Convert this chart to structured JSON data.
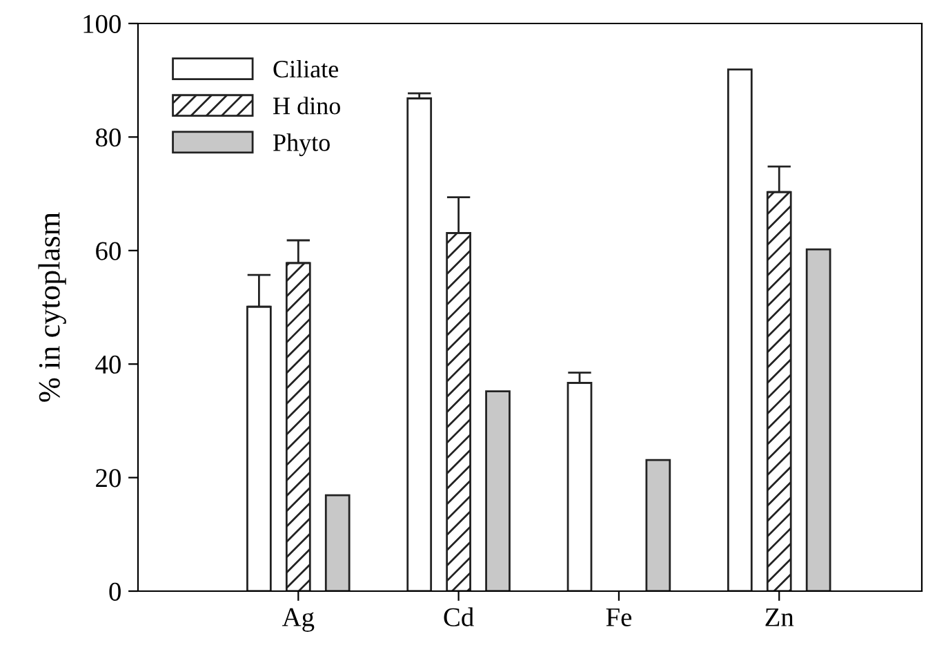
{
  "chart_data": {
    "type": "bar",
    "ylabel": "% in cytoplasm",
    "categories": [
      "Ag",
      "Cd",
      "Fe",
      "Zn"
    ],
    "series": [
      {
        "name": "Ciliate",
        "color": "#ffffff",
        "values": [
          50.1,
          86.8,
          36.7,
          91.9
        ],
        "errors": [
          [
            50.1,
            55.7
          ],
          [
            86.8,
            87.7
          ],
          [
            36.7,
            38.5
          ],
          null
        ]
      },
      {
        "name": "H dino",
        "color": "#222222",
        "values": [
          57.8,
          63.1,
          null,
          70.3
        ],
        "errors": [
          [
            57.8,
            61.8
          ],
          [
            63.1,
            69.4
          ],
          null,
          [
            70.3,
            74.8
          ]
        ]
      },
      {
        "name": "Phyto",
        "color": "#c8c8c8",
        "values": [
          16.9,
          35.2,
          23.1,
          60.2
        ]
      }
    ],
    "ylim": [
      0,
      100
    ],
    "yticks": [
      0,
      20,
      40,
      60,
      80,
      100
    ],
    "grid": false,
    "legend": "top left"
  }
}
